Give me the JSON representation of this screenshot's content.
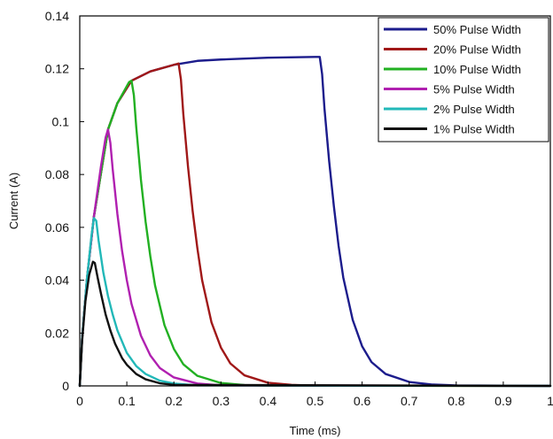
{
  "chart_data": {
    "type": "line",
    "title": "",
    "xlabel": "Time (ms)",
    "ylabel": "Current (A)",
    "xlim": [
      0,
      1
    ],
    "ylim": [
      0,
      0.14
    ],
    "x_ticks": [
      "0",
      "0.1",
      "0.2",
      "0.3",
      "0.4",
      "0.5",
      "0.6",
      "0.7",
      "0.8",
      "0.9",
      "1"
    ],
    "y_ticks": [
      "0",
      "0.02",
      "0.04",
      "0.06",
      "0.08",
      "0.1",
      "0.12",
      "0.14"
    ],
    "legend_position": "top-right",
    "grid": false,
    "series": [
      {
        "name": "50% Pulse Width",
        "color": "#1c1c8c",
        "points": [
          [
            0,
            0
          ],
          [
            0.005,
            0.018
          ],
          [
            0.015,
            0.04
          ],
          [
            0.03,
            0.064
          ],
          [
            0.06,
            0.097
          ],
          [
            0.08,
            0.107
          ],
          [
            0.11,
            0.1155
          ],
          [
            0.15,
            0.119
          ],
          [
            0.2,
            0.1215
          ],
          [
            0.25,
            0.123
          ],
          [
            0.3,
            0.1235
          ],
          [
            0.4,
            0.1242
          ],
          [
            0.5,
            0.1245
          ],
          [
            0.51,
            0.1245
          ],
          [
            0.515,
            0.118
          ],
          [
            0.52,
            0.105
          ],
          [
            0.53,
            0.085
          ],
          [
            0.54,
            0.068
          ],
          [
            0.55,
            0.053
          ],
          [
            0.56,
            0.041
          ],
          [
            0.58,
            0.025
          ],
          [
            0.6,
            0.015
          ],
          [
            0.62,
            0.009
          ],
          [
            0.65,
            0.0045
          ],
          [
            0.7,
            0.0015
          ],
          [
            0.75,
            0.0005
          ],
          [
            0.8,
            0.0002
          ],
          [
            1.0,
            0
          ]
        ]
      },
      {
        "name": "20% Pulse Width",
        "color": "#a01818",
        "points": [
          [
            0,
            0
          ],
          [
            0.005,
            0.018
          ],
          [
            0.015,
            0.04
          ],
          [
            0.03,
            0.064
          ],
          [
            0.06,
            0.097
          ],
          [
            0.08,
            0.107
          ],
          [
            0.11,
            0.1155
          ],
          [
            0.15,
            0.119
          ],
          [
            0.2,
            0.1215
          ],
          [
            0.21,
            0.122
          ],
          [
            0.215,
            0.116
          ],
          [
            0.22,
            0.103
          ],
          [
            0.23,
            0.083
          ],
          [
            0.24,
            0.066
          ],
          [
            0.25,
            0.052
          ],
          [
            0.26,
            0.04
          ],
          [
            0.28,
            0.024
          ],
          [
            0.3,
            0.0145
          ],
          [
            0.32,
            0.0085
          ],
          [
            0.35,
            0.004
          ],
          [
            0.4,
            0.0012
          ],
          [
            0.45,
            0.0004
          ],
          [
            0.5,
            0.0001
          ],
          [
            1.0,
            0
          ]
        ]
      },
      {
        "name": "10% Pulse Width",
        "color": "#22b022",
        "points": [
          [
            0,
            0
          ],
          [
            0.005,
            0.018
          ],
          [
            0.015,
            0.04
          ],
          [
            0.03,
            0.064
          ],
          [
            0.06,
            0.097
          ],
          [
            0.08,
            0.107
          ],
          [
            0.105,
            0.115
          ],
          [
            0.11,
            0.1155
          ],
          [
            0.115,
            0.11
          ],
          [
            0.12,
            0.098
          ],
          [
            0.13,
            0.078
          ],
          [
            0.14,
            0.062
          ],
          [
            0.15,
            0.049
          ],
          [
            0.16,
            0.038
          ],
          [
            0.18,
            0.023
          ],
          [
            0.2,
            0.014
          ],
          [
            0.22,
            0.0082
          ],
          [
            0.25,
            0.0038
          ],
          [
            0.3,
            0.0011
          ],
          [
            0.35,
            0.0003
          ],
          [
            0.4,
            0.0001
          ],
          [
            1.0,
            0
          ]
        ]
      },
      {
        "name": "5% Pulse Width",
        "color": "#b020b0",
        "points": [
          [
            0,
            0
          ],
          [
            0.005,
            0.018
          ],
          [
            0.015,
            0.04
          ],
          [
            0.03,
            0.064
          ],
          [
            0.045,
            0.083
          ],
          [
            0.055,
            0.094
          ],
          [
            0.06,
            0.097
          ],
          [
            0.065,
            0.092
          ],
          [
            0.07,
            0.082
          ],
          [
            0.08,
            0.065
          ],
          [
            0.09,
            0.051
          ],
          [
            0.1,
            0.04
          ],
          [
            0.11,
            0.031
          ],
          [
            0.13,
            0.019
          ],
          [
            0.15,
            0.0115
          ],
          [
            0.17,
            0.0068
          ],
          [
            0.2,
            0.0032
          ],
          [
            0.25,
            0.0009
          ],
          [
            0.3,
            0.0002
          ],
          [
            1.0,
            0
          ]
        ]
      },
      {
        "name": "2% Pulse Width",
        "color": "#22b8b8",
        "points": [
          [
            0,
            0
          ],
          [
            0.005,
            0.018
          ],
          [
            0.015,
            0.04
          ],
          [
            0.025,
            0.057
          ],
          [
            0.03,
            0.0635
          ],
          [
            0.035,
            0.0625
          ],
          [
            0.04,
            0.055
          ],
          [
            0.05,
            0.043
          ],
          [
            0.06,
            0.034
          ],
          [
            0.07,
            0.027
          ],
          [
            0.08,
            0.021
          ],
          [
            0.1,
            0.0125
          ],
          [
            0.12,
            0.0075
          ],
          [
            0.14,
            0.0045
          ],
          [
            0.17,
            0.002
          ],
          [
            0.2,
            0.0009
          ],
          [
            0.25,
            0.0002
          ],
          [
            1.0,
            0
          ]
        ]
      },
      {
        "name": "1% Pulse Width",
        "color": "#111111",
        "points": [
          [
            0,
            0
          ],
          [
            0.005,
            0.017
          ],
          [
            0.012,
            0.032
          ],
          [
            0.02,
            0.042
          ],
          [
            0.028,
            0.047
          ],
          [
            0.032,
            0.0465
          ],
          [
            0.038,
            0.041
          ],
          [
            0.045,
            0.035
          ],
          [
            0.055,
            0.027
          ],
          [
            0.065,
            0.021
          ],
          [
            0.075,
            0.016
          ],
          [
            0.09,
            0.0105
          ],
          [
            0.1,
            0.008
          ],
          [
            0.12,
            0.0045
          ],
          [
            0.14,
            0.0025
          ],
          [
            0.17,
            0.001
          ],
          [
            0.2,
            0.0004
          ],
          [
            1.0,
            0
          ]
        ]
      }
    ]
  }
}
